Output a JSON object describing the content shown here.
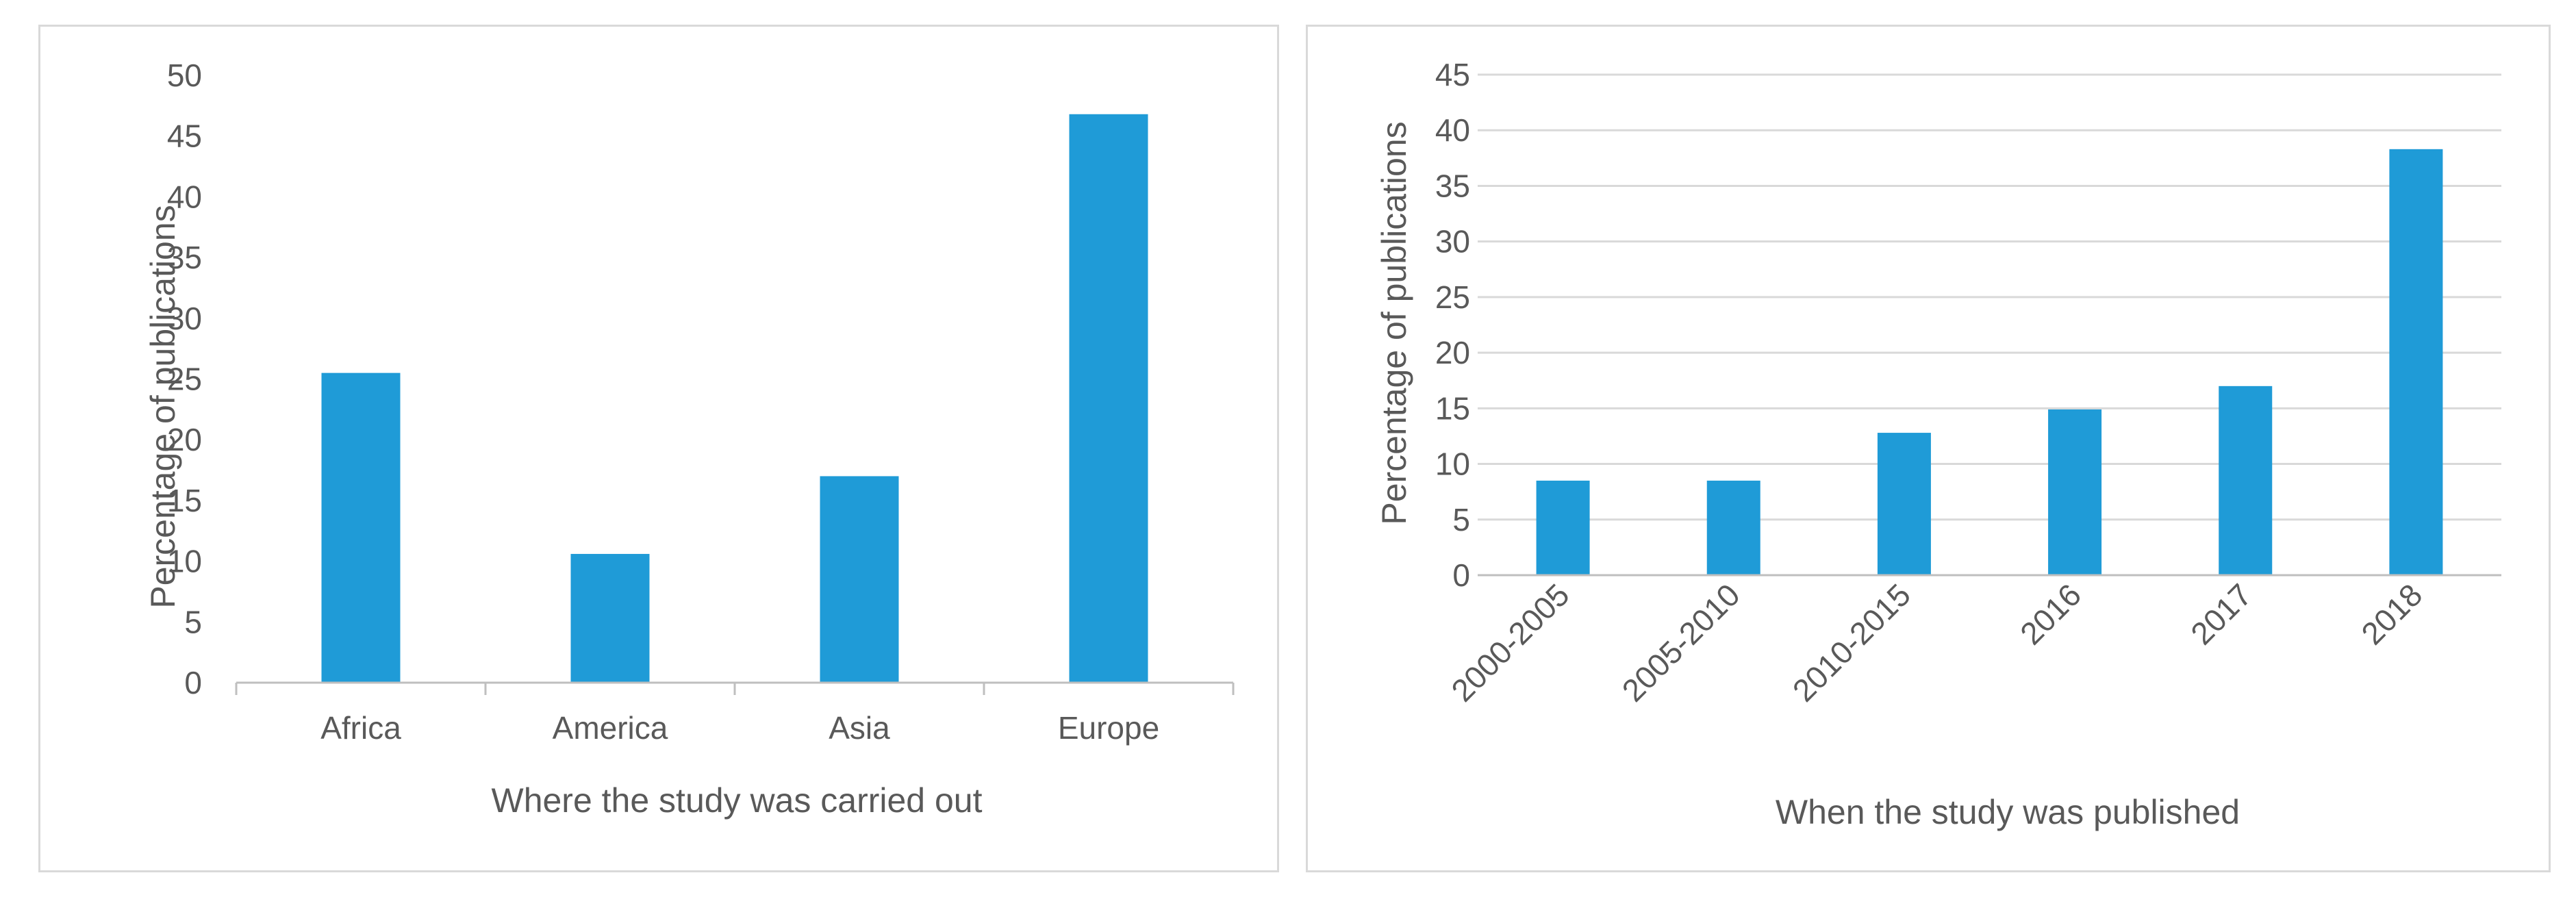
{
  "chart_data": [
    {
      "type": "bar",
      "categories": [
        "Africa",
        "America",
        "Asia",
        "Europe"
      ],
      "values": [
        25.5,
        10.6,
        17.0,
        46.8
      ],
      "xlabel": "Where the study was carried out",
      "ylabel": "Percentage of publications",
      "ylim": [
        0,
        50
      ],
      "yticks": [
        0,
        5,
        10,
        15,
        20,
        25,
        30,
        35,
        40,
        45,
        50
      ],
      "grid": false,
      "bar_color": "#1f9bd7"
    },
    {
      "type": "bar",
      "categories": [
        "2000-2005",
        "2005-2010",
        "2010-2015",
        "2016",
        "2017",
        "2018"
      ],
      "values": [
        8.5,
        8.5,
        12.8,
        14.9,
        17.0,
        38.3
      ],
      "xlabel": "When the study was published",
      "ylabel": "Percentage of publications",
      "ylim": [
        0,
        45
      ],
      "yticks": [
        0,
        5,
        10,
        15,
        20,
        25,
        30,
        35,
        40,
        45
      ],
      "grid": true,
      "bar_color": "#1f9bd7"
    }
  ]
}
